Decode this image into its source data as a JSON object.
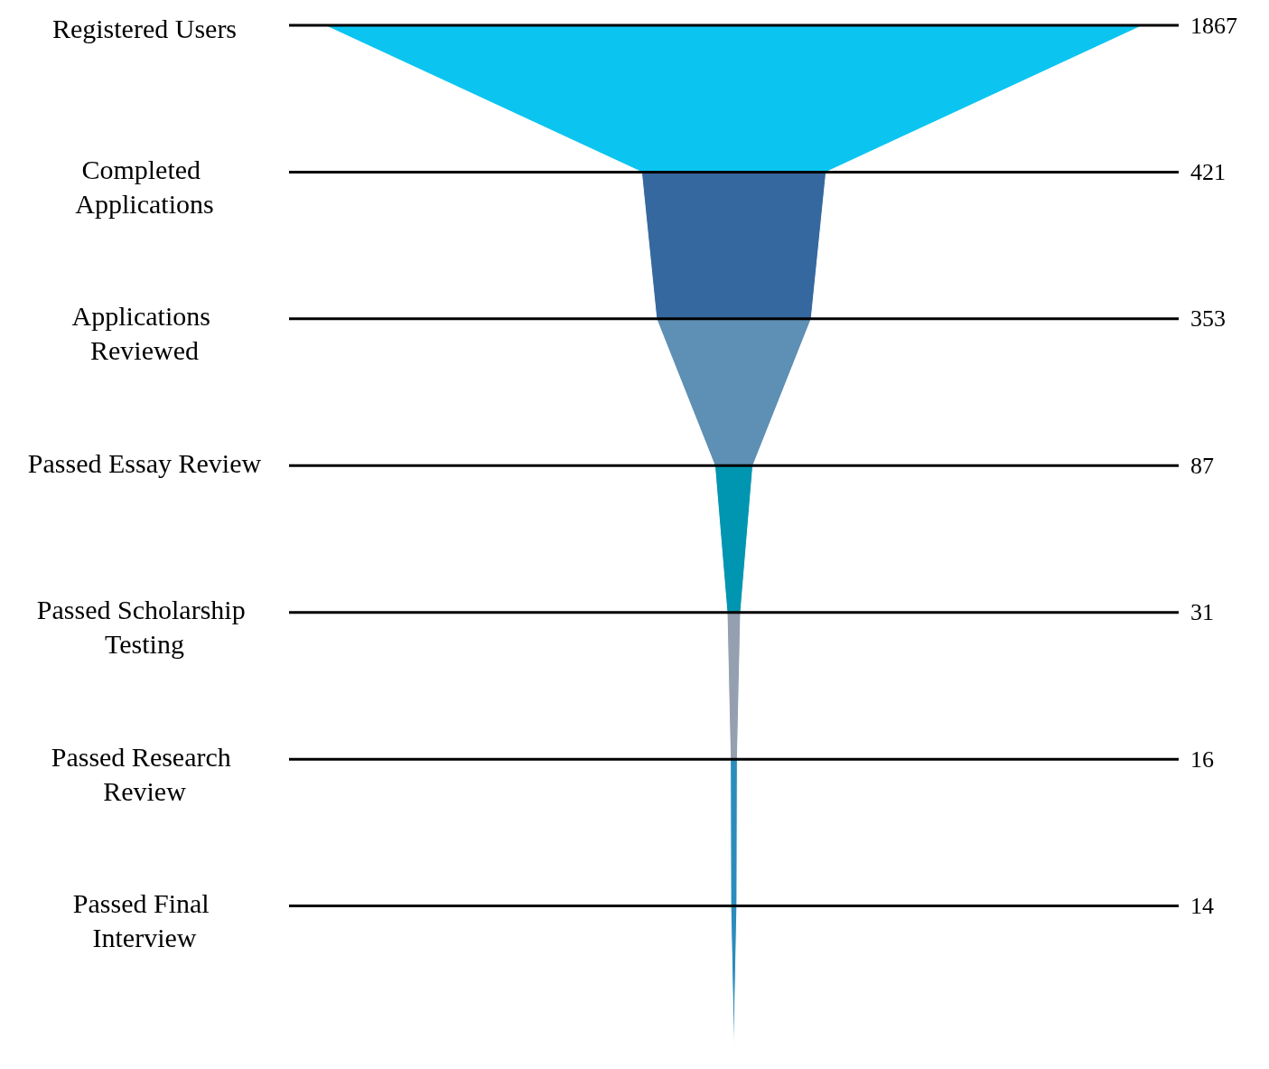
{
  "chart_data": {
    "type": "other",
    "categories": [
      "Registered Users",
      "Completed Applications",
      "Applications Reviewed",
      "Passed Essay Review",
      "Passed Scholarship Testing",
      "Passed Research Review",
      "Passed Final Interview"
    ],
    "values": [
      1867,
      421,
      353,
      87,
      31,
      16,
      14
    ],
    "data_labels": true,
    "colors": [
      "#0bc5f0",
      "#35689e",
      "#5e8fb4",
      "#0095b0",
      "#94a0b0",
      "#2b8cbc",
      "#2b8cbc"
    ]
  }
}
